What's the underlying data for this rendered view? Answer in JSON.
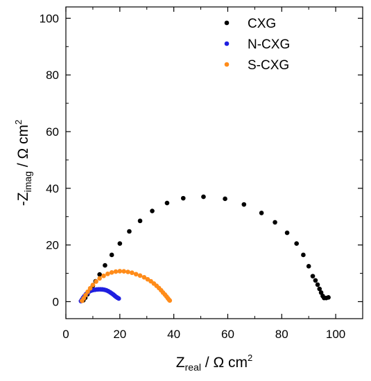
{
  "chart_data": {
    "type": "scatter",
    "title": "",
    "xlabel": {
      "main": "Z",
      "sub": "real",
      "unit": " / Ω cm",
      "sup": "2"
    },
    "ylabel": {
      "main": "-Z",
      "sub": "imag",
      "unit": " / Ω cm",
      "sup": "2"
    },
    "xlim": [
      0,
      110
    ],
    "ylim": [
      -6,
      104
    ],
    "xticks": [
      "0",
      "20",
      "40",
      "60",
      "80",
      "100"
    ],
    "yticks": [
      "0",
      "20",
      "40",
      "60",
      "80",
      "100"
    ],
    "grid": false,
    "legend_position": "top-right",
    "series": [
      {
        "name": "CXG",
        "color": "#000000",
        "points": [
          [
            6.5,
            0.5
          ],
          [
            7.2,
            1.4
          ],
          [
            8.0,
            2.6
          ],
          [
            9.0,
            4.0
          ],
          [
            10.0,
            5.6
          ],
          [
            11.0,
            7.2
          ],
          [
            12.5,
            9.6
          ],
          [
            14.5,
            12.8
          ],
          [
            17.0,
            16.5
          ],
          [
            20.0,
            20.5
          ],
          [
            23.5,
            24.8
          ],
          [
            27.5,
            28.5
          ],
          [
            32.0,
            32.0
          ],
          [
            37.5,
            34.8
          ],
          [
            43.5,
            36.5
          ],
          [
            51.0,
            37.0
          ],
          [
            59.0,
            36.3
          ],
          [
            66.0,
            34.3
          ],
          [
            72.5,
            31.3
          ],
          [
            77.5,
            28.0
          ],
          [
            82.0,
            24.3
          ],
          [
            85.5,
            20.5
          ],
          [
            88.0,
            16.5
          ],
          [
            90.0,
            12.5
          ],
          [
            91.5,
            9.0
          ],
          [
            92.5,
            7.5
          ],
          [
            93.3,
            6.0
          ],
          [
            94.0,
            4.5
          ],
          [
            94.6,
            3.2
          ],
          [
            95.2,
            2.0
          ],
          [
            95.7,
            1.3
          ],
          [
            96.5,
            1.3
          ],
          [
            97.3,
            1.5
          ]
        ]
      },
      {
        "name": "N-CXG",
        "color": "#1f1fe0",
        "points": [
          [
            5.6,
            0.2
          ],
          [
            6.0,
            0.8
          ],
          [
            6.4,
            1.4
          ],
          [
            6.9,
            2.0
          ],
          [
            7.4,
            2.6
          ],
          [
            8.0,
            3.1
          ],
          [
            8.7,
            3.6
          ],
          [
            9.4,
            3.9
          ],
          [
            10.1,
            4.1
          ],
          [
            10.8,
            4.2
          ],
          [
            11.5,
            4.3
          ],
          [
            12.2,
            4.35
          ],
          [
            12.9,
            4.35
          ],
          [
            13.6,
            4.3
          ],
          [
            14.3,
            4.2
          ],
          [
            15.0,
            4.0
          ],
          [
            15.7,
            3.7
          ],
          [
            16.4,
            3.3
          ],
          [
            17.0,
            2.9
          ],
          [
            17.6,
            2.5
          ],
          [
            18.1,
            2.1
          ],
          [
            18.6,
            1.7
          ],
          [
            19.1,
            1.4
          ],
          [
            19.6,
            1.1
          ]
        ]
      },
      {
        "name": "S-CXG",
        "color": "#ff8c1a",
        "points": [
          [
            6.0,
            0.3
          ],
          [
            6.6,
            1.2
          ],
          [
            7.3,
            2.3
          ],
          [
            8.1,
            3.5
          ],
          [
            9.0,
            4.7
          ],
          [
            10.0,
            5.9
          ],
          [
            11.2,
            7.1
          ],
          [
            12.5,
            8.2
          ],
          [
            14.0,
            9.1
          ],
          [
            15.5,
            9.8
          ],
          [
            17.0,
            10.3
          ],
          [
            18.5,
            10.6
          ],
          [
            20.0,
            10.75
          ],
          [
            21.5,
            10.7
          ],
          [
            23.0,
            10.5
          ],
          [
            24.5,
            10.2
          ],
          [
            26.0,
            9.7
          ],
          [
            27.5,
            9.2
          ],
          [
            29.0,
            8.6
          ],
          [
            30.3,
            7.9
          ],
          [
            31.5,
            7.2
          ],
          [
            32.6,
            6.4
          ],
          [
            33.6,
            5.6
          ],
          [
            34.5,
            4.8
          ],
          [
            35.3,
            4.0
          ],
          [
            36.0,
            3.2
          ],
          [
            36.7,
            2.5
          ],
          [
            37.3,
            1.8
          ],
          [
            37.8,
            1.2
          ],
          [
            38.2,
            0.7
          ],
          [
            38.5,
            0.4
          ]
        ]
      }
    ]
  }
}
